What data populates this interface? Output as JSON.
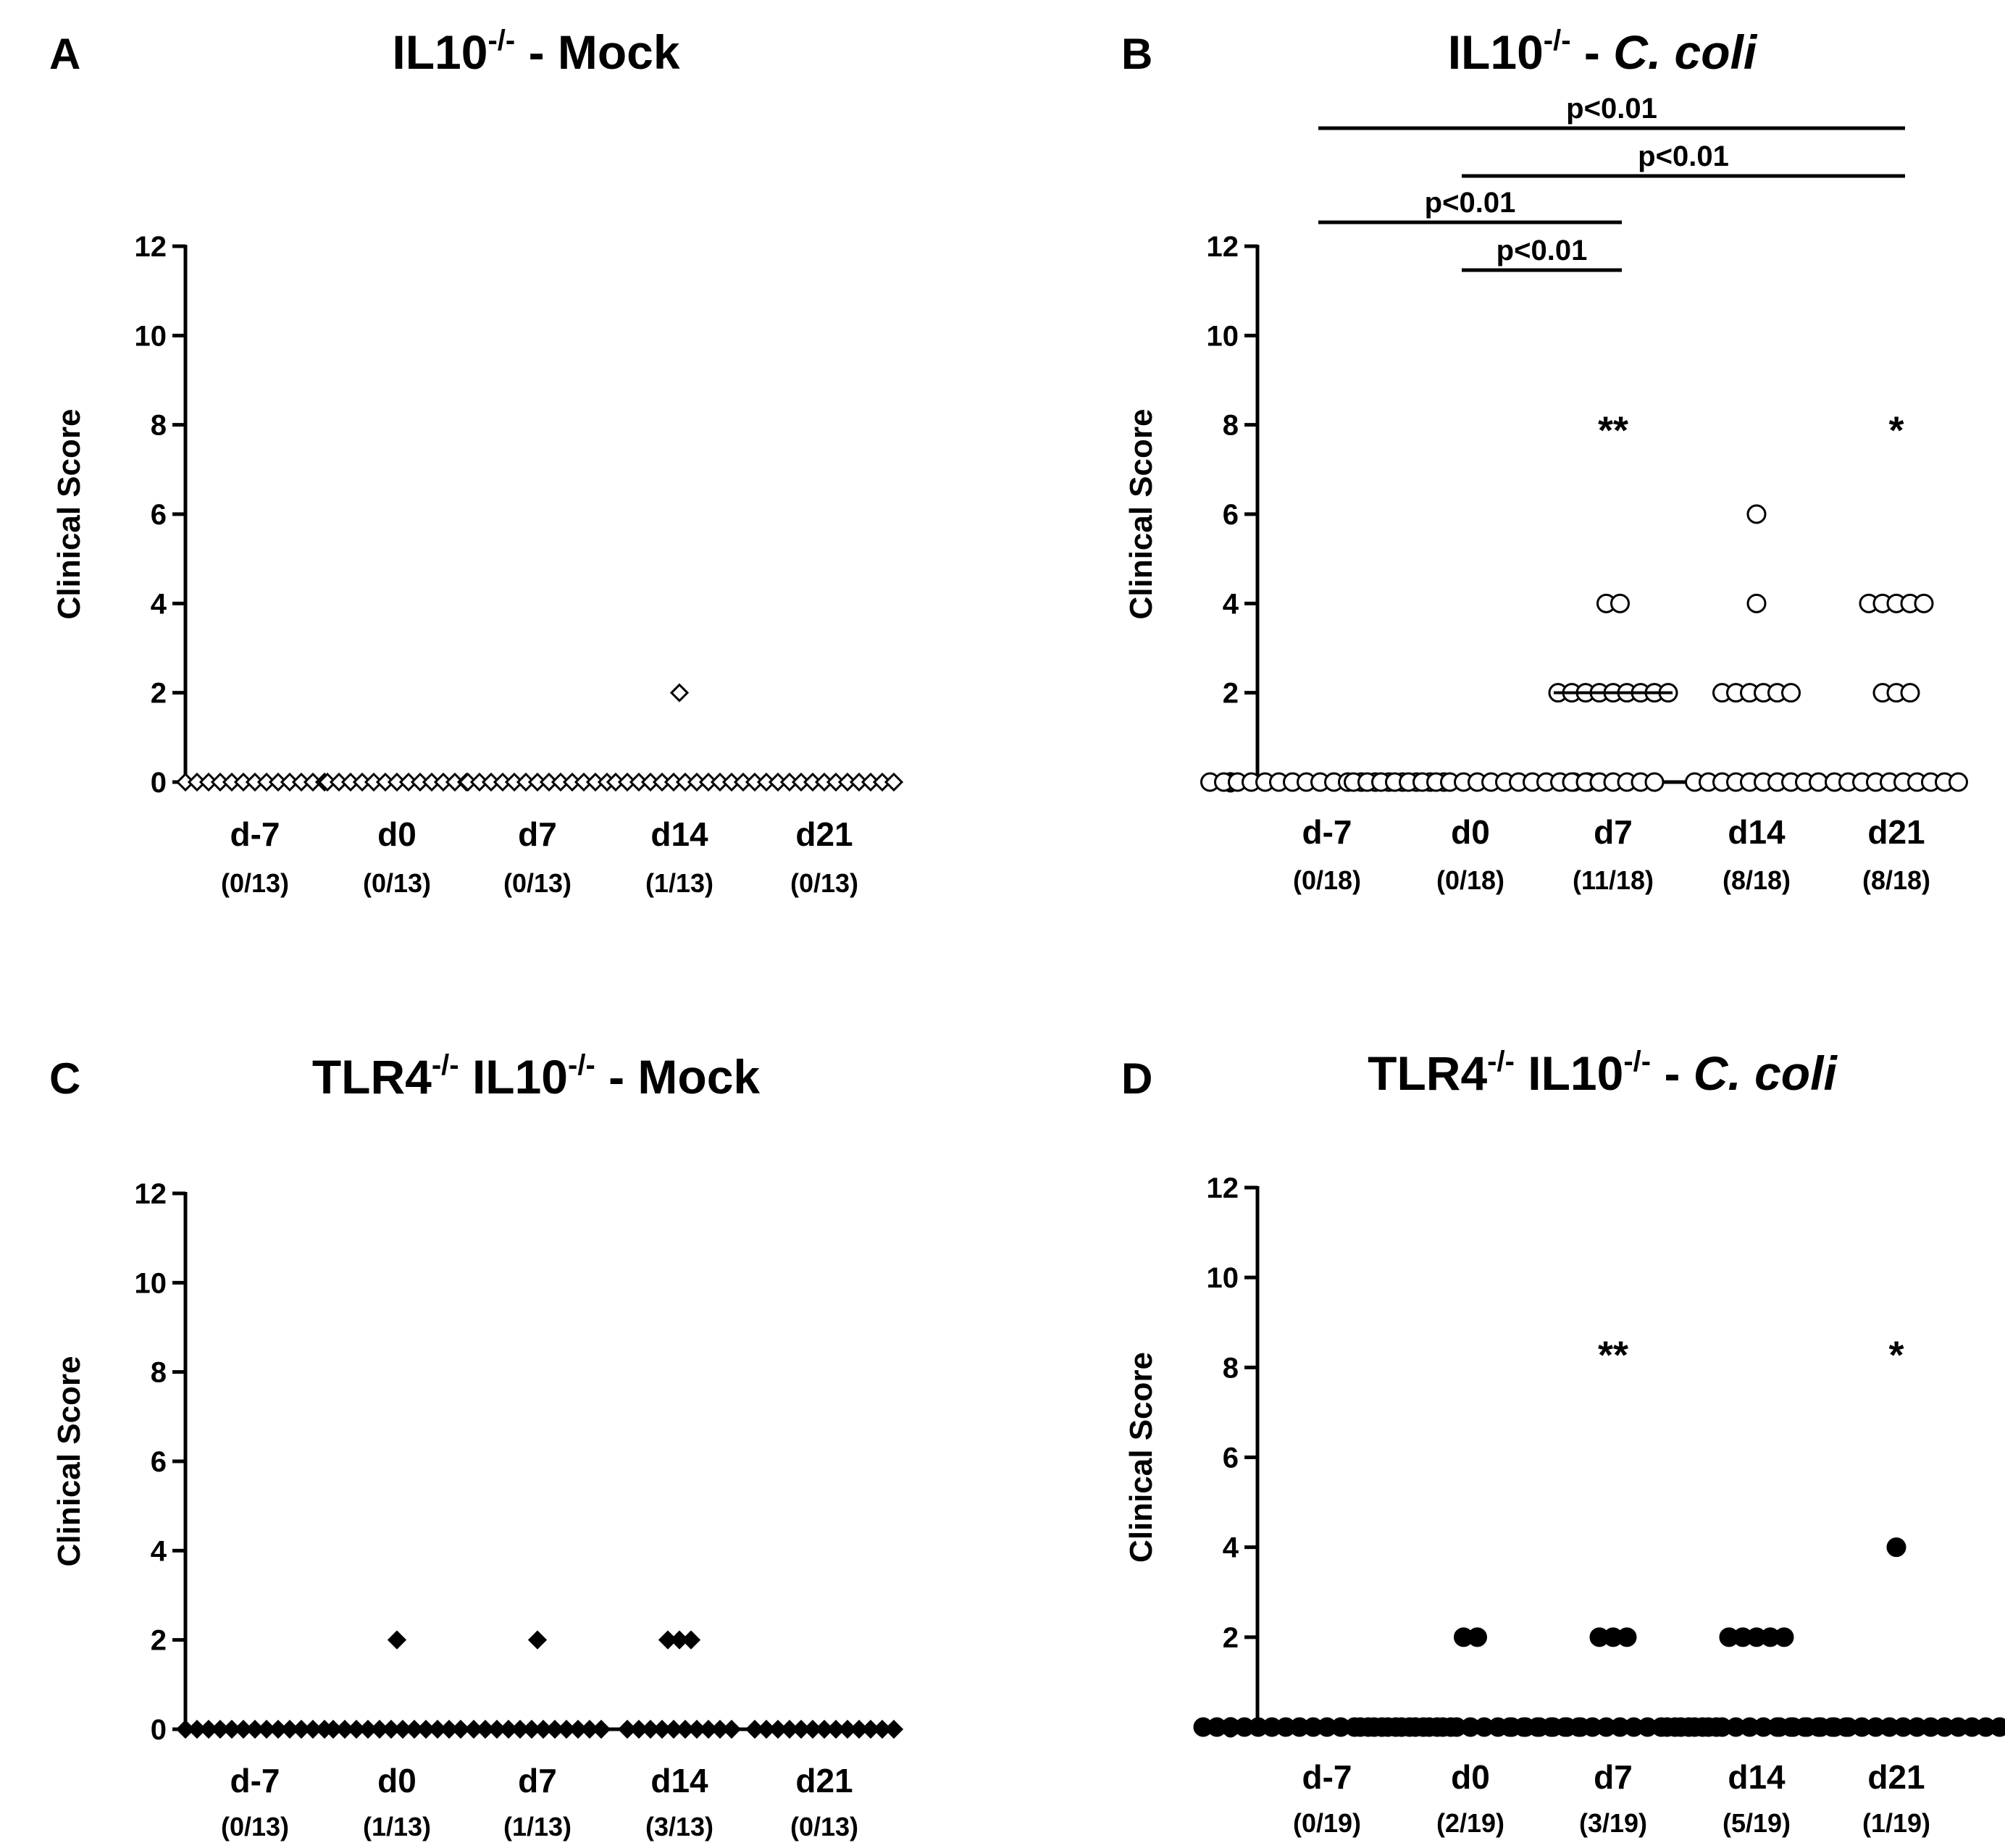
{
  "chart_data": [
    {
      "type": "scatter",
      "panel": "A",
      "title": {
        "pre": "IL10",
        "sup": "-/-",
        "post": " - Mock",
        "italic": ""
      },
      "ylabel": "Clinical Score",
      "ylim": [
        0,
        12
      ],
      "yticks": [
        "0",
        "2",
        "4",
        "6",
        "8",
        "10",
        "12"
      ],
      "categories": [
        "d-7",
        "d0",
        "d7",
        "d14",
        "d21"
      ],
      "counts": [
        "(0/13)",
        "(0/13)",
        "(0/13)",
        "(1/13)",
        "(0/13)"
      ],
      "marker": "diamond-open",
      "groups": [
        {
          "values": [
            0,
            0,
            0,
            0,
            0,
            0,
            0,
            0,
            0,
            0,
            0,
            0,
            0
          ]
        },
        {
          "values": [
            0,
            0,
            0,
            0,
            0,
            0,
            0,
            0,
            0,
            0,
            0,
            0,
            0
          ]
        },
        {
          "values": [
            0,
            0,
            0,
            0,
            0,
            0,
            0,
            0,
            0,
            0,
            0,
            0,
            0
          ]
        },
        {
          "values": [
            2,
            0,
            0,
            0,
            0,
            0,
            0,
            0,
            0,
            0,
            0,
            0,
            0
          ]
        },
        {
          "values": [
            0,
            0,
            0,
            0,
            0,
            0,
            0,
            0,
            0,
            0,
            0,
            0,
            0
          ]
        }
      ],
      "medians": [],
      "stars": [],
      "brackets": []
    },
    {
      "type": "scatter",
      "panel": "B",
      "title": {
        "pre": "IL10",
        "sup": "-/-",
        "post": " - ",
        "italic": "C. coli"
      },
      "ylabel": "Clinical Score",
      "ylim": [
        0,
        12
      ],
      "yticks": [
        "0",
        "2",
        "4",
        "6",
        "8",
        "10",
        "12"
      ],
      "categories": [
        "d-7",
        "d0",
        "d7",
        "d14",
        "d21"
      ],
      "counts": [
        "(0/18)",
        "(0/18)",
        "(11/18)",
        "(8/18)",
        "(8/18)"
      ],
      "marker": "circle-open",
      "groups": [
        {
          "values": [
            0,
            0,
            0,
            0,
            0,
            0,
            0,
            0,
            0,
            0,
            0,
            0,
            0,
            0,
            0,
            0,
            0,
            0
          ]
        },
        {
          "values": [
            0,
            0,
            0,
            0,
            0,
            0,
            0,
            0,
            0,
            0,
            0,
            0,
            0,
            0,
            0,
            0,
            0,
            0
          ]
        },
        {
          "values": [
            4,
            4,
            2,
            2,
            2,
            2,
            2,
            2,
            2,
            2,
            2,
            0,
            0,
            0,
            0,
            0,
            0,
            0
          ]
        },
        {
          "values": [
            6,
            4,
            2,
            2,
            2,
            2,
            2,
            2,
            0,
            0,
            0,
            0,
            0,
            0,
            0,
            0,
            0,
            0
          ]
        },
        {
          "values": [
            4,
            4,
            4,
            4,
            4,
            2,
            2,
            2,
            0,
            0,
            0,
            0,
            0,
            0,
            0,
            0,
            0,
            0
          ]
        }
      ],
      "medians": [
        {
          "category": "d7",
          "value": 2
        }
      ],
      "stars": [
        {
          "category": "d7",
          "text": "**",
          "y": 8
        },
        {
          "category": "d21",
          "text": "*",
          "y": 8
        }
      ],
      "brackets": [
        {
          "from": "d-7",
          "to": "d21",
          "label": "p<0.01",
          "level": 4
        },
        {
          "from": "d0",
          "to": "d21",
          "label": "p<0.01",
          "level": 3
        },
        {
          "from": "d-7",
          "to": "d7",
          "label": "p<0.01",
          "level": 2
        },
        {
          "from": "d0",
          "to": "d7",
          "label": "p<0.01",
          "level": 1
        }
      ]
    },
    {
      "type": "scatter",
      "panel": "C",
      "title": {
        "pre": "TLR4",
        "sup": "-/-",
        "pre2": " IL10",
        "sup2": "-/-",
        "post": " - Mock",
        "italic": ""
      },
      "ylabel": "Clinical Score",
      "ylim": [
        0,
        12
      ],
      "yticks": [
        "0",
        "2",
        "4",
        "6",
        "8",
        "10",
        "12"
      ],
      "categories": [
        "d-7",
        "d0",
        "d7",
        "d14",
        "d21"
      ],
      "counts": [
        "(0/13)",
        "(1/13)",
        "(1/13)",
        "(3/13)",
        "(0/13)"
      ],
      "marker": "diamond-filled",
      "groups": [
        {
          "values": [
            0,
            0,
            0,
            0,
            0,
            0,
            0,
            0,
            0,
            0,
            0,
            0,
            0
          ]
        },
        {
          "values": [
            2,
            0,
            0,
            0,
            0,
            0,
            0,
            0,
            0,
            0,
            0,
            0,
            0
          ]
        },
        {
          "values": [
            2,
            0,
            0,
            0,
            0,
            0,
            0,
            0,
            0,
            0,
            0,
            0,
            0
          ]
        },
        {
          "values": [
            2,
            2,
            2,
            0,
            0,
            0,
            0,
            0,
            0,
            0,
            0,
            0,
            0
          ]
        },
        {
          "values": [
            0,
            0,
            0,
            0,
            0,
            0,
            0,
            0,
            0,
            0,
            0,
            0,
            0
          ]
        }
      ],
      "medians": [],
      "stars": [],
      "brackets": []
    },
    {
      "type": "scatter",
      "panel": "D",
      "title": {
        "pre": "TLR4",
        "sup": "-/-",
        "pre2": " IL10",
        "sup2": "-/-",
        "post": " - ",
        "italic": "C. coli"
      },
      "ylabel": "Clinical Score",
      "ylim": [
        0,
        12
      ],
      "yticks": [
        "0",
        "2",
        "4",
        "6",
        "8",
        "10",
        "12"
      ],
      "categories": [
        "d-7",
        "d0",
        "d7",
        "d14",
        "d21"
      ],
      "counts": [
        "(0/19)",
        "(2/19)",
        "(3/19)",
        "(5/19)",
        "(1/19)"
      ],
      "marker": "circle-filled",
      "groups": [
        {
          "values": [
            0,
            0,
            0,
            0,
            0,
            0,
            0,
            0,
            0,
            0,
            0,
            0,
            0,
            0,
            0,
            0,
            0,
            0,
            0
          ]
        },
        {
          "values": [
            2,
            2,
            0,
            0,
            0,
            0,
            0,
            0,
            0,
            0,
            0,
            0,
            0,
            0,
            0,
            0,
            0,
            0,
            0
          ]
        },
        {
          "values": [
            2,
            2,
            2,
            0,
            0,
            0,
            0,
            0,
            0,
            0,
            0,
            0,
            0,
            0,
            0,
            0,
            0,
            0,
            0
          ]
        },
        {
          "values": [
            2,
            2,
            2,
            2,
            2,
            0,
            0,
            0,
            0,
            0,
            0,
            0,
            0,
            0,
            0,
            0,
            0,
            0,
            0
          ]
        },
        {
          "values": [
            4,
            0,
            0,
            0,
            0,
            0,
            0,
            0,
            0,
            0,
            0,
            0,
            0,
            0,
            0,
            0,
            0,
            0,
            0
          ]
        }
      ],
      "medians": [],
      "stars": [
        {
          "category": "d7",
          "text": "**",
          "y": 8.4
        },
        {
          "category": "d21",
          "text": "*",
          "y": 8.4
        }
      ],
      "brackets": []
    }
  ]
}
